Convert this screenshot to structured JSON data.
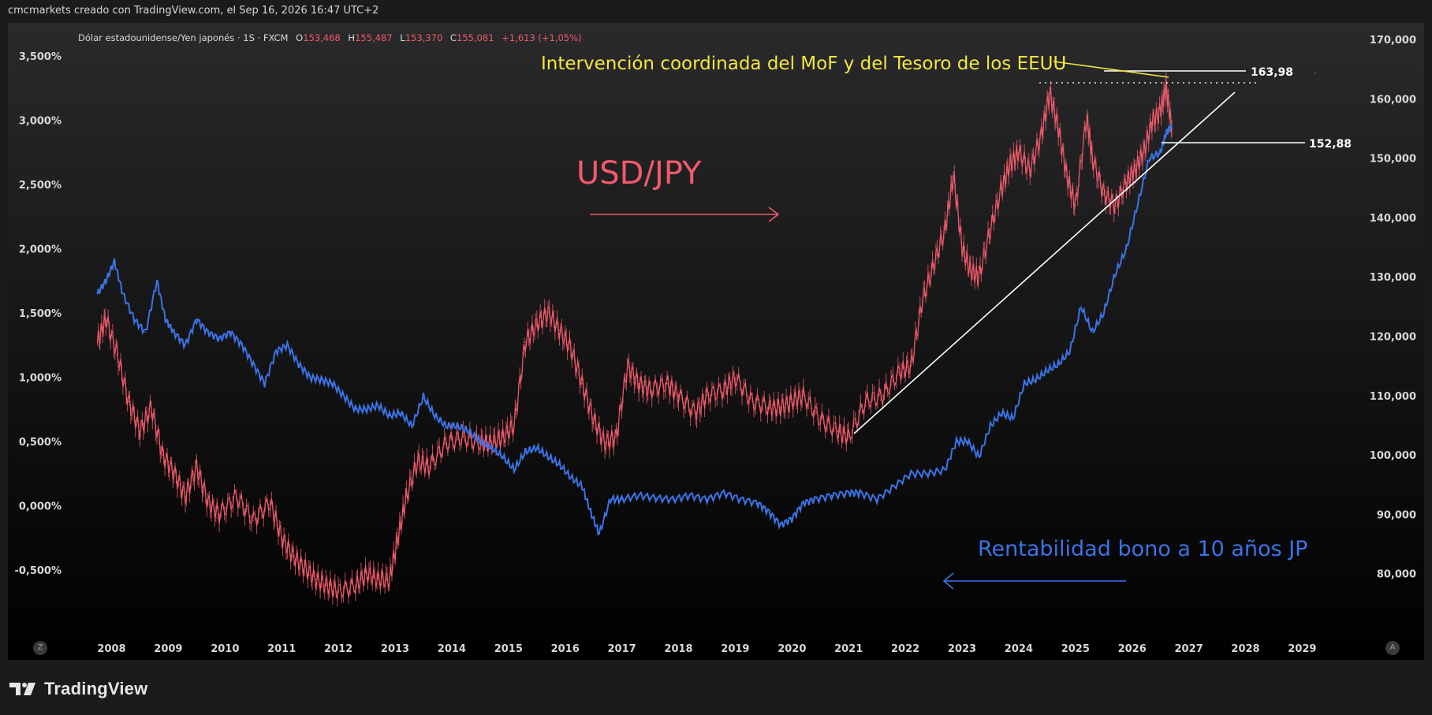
{
  "header": {
    "attribution": "cmcmarkets creado con TradingView.com, el Sep 16, 2026 16:47 UTC+2"
  },
  "legend": {
    "symbol": "Dólar estadounidense/Yen japonés · 1S · FXCM",
    "o_label": "O",
    "o_value": "153,468",
    "h_label": "H",
    "h_value": "155,487",
    "l_label": "L",
    "l_value": "153,370",
    "c_label": "C",
    "c_value": "155,081",
    "change": "+1,613 (+1,05%)"
  },
  "annotations": {
    "intervention": "Intervención coordinada del MoF y del Tesoro de los EEUU",
    "usdjpy": "USD/JPY",
    "bond": "Rentabilidad bono a 10 años JP",
    "level_high": "163,98",
    "level_low": "152,88"
  },
  "footer": {
    "brand": "TradingView"
  },
  "buttons": {
    "z": "Z",
    "a": "A"
  },
  "colors": {
    "usdjpy": "#f05a6a",
    "bond": "#3b73e6",
    "annotation_yellow": "#f5e642",
    "background": "#000000",
    "trendline": "#ffffff"
  },
  "chart_data": {
    "type": "line",
    "x_tick_labels": [
      "2008",
      "2009",
      "2010",
      "2011",
      "2012",
      "2013",
      "2014",
      "2015",
      "2016",
      "2017",
      "2018",
      "2019",
      "2020",
      "2021",
      "2022",
      "2023",
      "2024",
      "2025",
      "2026",
      "2027",
      "2028",
      "2029"
    ],
    "left_axis_labels": [
      "3,500%",
      "3,000%",
      "2,500%",
      "2,000%",
      "1,500%",
      "1,000%",
      "0,500%",
      "0,000%",
      "-0,500%"
    ],
    "right_axis_labels": [
      "170,000",
      "160,000",
      "150,000",
      "140,000",
      "130,000",
      "120,000",
      "110,000",
      "100,000",
      "90,000",
      "80,000"
    ],
    "left_axis_range": [
      -0.5,
      3.5
    ],
    "right_axis_range": [
      80,
      170
    ],
    "series": [
      {
        "name": "USD/JPY",
        "axis": "right",
        "x": [
          2007.75,
          2007.9,
          2008.1,
          2008.3,
          2008.5,
          2008.7,
          2008.9,
          2009.1,
          2009.3,
          2009.5,
          2009.7,
          2009.9,
          2010.2,
          2010.5,
          2010.8,
          2011.0,
          2011.2,
          2011.4,
          2011.6,
          2011.8,
          2012.0,
          2012.3,
          2012.5,
          2012.7,
          2012.9,
          2013.05,
          2013.2,
          2013.4,
          2013.6,
          2013.9,
          2014.2,
          2014.5,
          2014.7,
          2014.9,
          2015.1,
          2015.3,
          2015.5,
          2015.7,
          2015.9,
          2016.1,
          2016.3,
          2016.5,
          2016.7,
          2016.9,
          2017.1,
          2017.3,
          2017.5,
          2017.8,
          2018.0,
          2018.3,
          2018.5,
          2018.8,
          2019.0,
          2019.3,
          2019.6,
          2019.8,
          2020.0,
          2020.2,
          2020.5,
          2020.8,
          2021.0,
          2021.3,
          2021.6,
          2021.9,
          2022.1,
          2022.3,
          2022.5,
          2022.7,
          2022.85,
          2023.0,
          2023.15,
          2023.3,
          2023.5,
          2023.7,
          2023.85,
          2024.0,
          2024.2,
          2024.4,
          2024.55,
          2024.7,
          2024.85,
          2025.0,
          2025.2,
          2025.3,
          2025.5,
          2025.7,
          2025.9,
          2026.05,
          2026.2,
          2026.35,
          2026.5,
          2026.6,
          2026.7
        ],
        "values": [
          119,
          123,
          117,
          109,
          104,
          108,
          100,
          97,
          93,
          98,
          92,
          90,
          93,
          89,
          92,
          86,
          83,
          81,
          79,
          78,
          77,
          78,
          80,
          79,
          79,
          86,
          93,
          99,
          98,
          102,
          103,
          102,
          102,
          103,
          105,
          119,
          122,
          124,
          121,
          118,
          112,
          106,
          102,
          103,
          115,
          112,
          111,
          112,
          110,
          107,
          110,
          111,
          113,
          109,
          108,
          108,
          109,
          110,
          106,
          104,
          103,
          109,
          110,
          114,
          115,
          126,
          132,
          138,
          147,
          135,
          131,
          130,
          138,
          145,
          149,
          151,
          148,
          154,
          161,
          155,
          147,
          142,
          157,
          150,
          144,
          142,
          146,
          148,
          151,
          156,
          158,
          162,
          155
        ]
      },
      {
        "name": "Rentabilidad bono a 10 años JP",
        "axis": "left",
        "x": [
          2007.75,
          2007.9,
          2008.05,
          2008.2,
          2008.4,
          2008.6,
          2008.8,
          2008.95,
          2009.1,
          2009.3,
          2009.5,
          2009.7,
          2009.9,
          2010.1,
          2010.3,
          2010.5,
          2010.7,
          2010.9,
          2011.1,
          2011.3,
          2011.5,
          2011.7,
          2011.9,
          2012.1,
          2012.3,
          2012.5,
          2012.7,
          2012.9,
          2013.1,
          2013.3,
          2013.5,
          2013.7,
          2013.9,
          2014.1,
          2014.3,
          2014.5,
          2014.7,
          2014.9,
          2015.1,
          2015.3,
          2015.5,
          2015.7,
          2015.9,
          2016.1,
          2016.3,
          2016.45,
          2016.6,
          2016.8,
          2017.0,
          2017.3,
          2017.6,
          2017.9,
          2018.2,
          2018.5,
          2018.8,
          2019.1,
          2019.4,
          2019.6,
          2019.8,
          2020.0,
          2020.2,
          2020.4,
          2020.7,
          2021.0,
          2021.2,
          2021.5,
          2021.8,
          2022.1,
          2022.4,
          2022.7,
          2022.9,
          2023.1,
          2023.3,
          2023.5,
          2023.7,
          2023.9,
          2024.1,
          2024.3,
          2024.5,
          2024.7,
          2024.9,
          2025.1,
          2025.3,
          2025.5,
          2025.7,
          2025.9,
          2026.1,
          2026.3,
          2026.5,
          2026.6,
          2026.7
        ],
        "values": [
          1.65,
          1.75,
          1.9,
          1.65,
          1.45,
          1.35,
          1.75,
          1.45,
          1.35,
          1.25,
          1.45,
          1.35,
          1.3,
          1.35,
          1.25,
          1.1,
          0.95,
          1.2,
          1.25,
          1.1,
          1.0,
          0.98,
          0.95,
          0.85,
          0.75,
          0.75,
          0.78,
          0.7,
          0.72,
          0.62,
          0.85,
          0.7,
          0.62,
          0.62,
          0.58,
          0.5,
          0.45,
          0.38,
          0.28,
          0.42,
          0.45,
          0.38,
          0.32,
          0.22,
          0.15,
          -0.05,
          -0.22,
          0.05,
          0.05,
          0.08,
          0.06,
          0.05,
          0.08,
          0.05,
          0.1,
          0.05,
          0.02,
          -0.05,
          -0.15,
          -0.1,
          0.02,
          0.05,
          0.08,
          0.1,
          0.1,
          0.05,
          0.15,
          0.25,
          0.25,
          0.28,
          0.5,
          0.5,
          0.38,
          0.62,
          0.72,
          0.68,
          0.95,
          0.98,
          1.05,
          1.1,
          1.2,
          1.55,
          1.35,
          1.5,
          1.8,
          2.0,
          2.35,
          2.7,
          2.75,
          2.9,
          2.95
        ]
      }
    ]
  }
}
